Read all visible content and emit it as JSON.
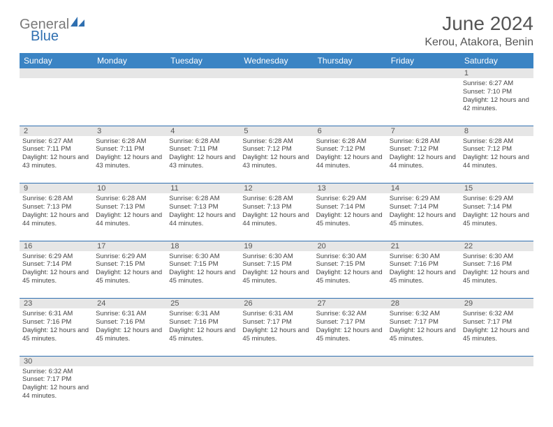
{
  "logo": {
    "text1": "General",
    "text2": "Blue"
  },
  "title": "June 2024",
  "location": "Kerou, Atakora, Benin",
  "colors": {
    "header_bg": "#3b84c4",
    "header_text": "#ffffff",
    "daynum_bg": "#e6e6e6",
    "border": "#2f6fb0",
    "logo_gray": "#7a7a7a",
    "logo_blue": "#2f6fb0"
  },
  "weekdays": [
    "Sunday",
    "Monday",
    "Tuesday",
    "Wednesday",
    "Thursday",
    "Friday",
    "Saturday"
  ],
  "weeks": [
    {
      "nums": [
        "",
        "",
        "",
        "",
        "",
        "",
        "1"
      ],
      "cells": [
        "",
        "",
        "",
        "",
        "",
        "",
        "Sunrise: 6:27 AM\nSunset: 7:10 PM\nDaylight: 12 hours and 42 minutes."
      ]
    },
    {
      "nums": [
        "2",
        "3",
        "4",
        "5",
        "6",
        "7",
        "8"
      ],
      "cells": [
        "Sunrise: 6:27 AM\nSunset: 7:11 PM\nDaylight: 12 hours and 43 minutes.",
        "Sunrise: 6:28 AM\nSunset: 7:11 PM\nDaylight: 12 hours and 43 minutes.",
        "Sunrise: 6:28 AM\nSunset: 7:11 PM\nDaylight: 12 hours and 43 minutes.",
        "Sunrise: 6:28 AM\nSunset: 7:12 PM\nDaylight: 12 hours and 43 minutes.",
        "Sunrise: 6:28 AM\nSunset: 7:12 PM\nDaylight: 12 hours and 44 minutes.",
        "Sunrise: 6:28 AM\nSunset: 7:12 PM\nDaylight: 12 hours and 44 minutes.",
        "Sunrise: 6:28 AM\nSunset: 7:12 PM\nDaylight: 12 hours and 44 minutes."
      ]
    },
    {
      "nums": [
        "9",
        "10",
        "11",
        "12",
        "13",
        "14",
        "15"
      ],
      "cells": [
        "Sunrise: 6:28 AM\nSunset: 7:13 PM\nDaylight: 12 hours and 44 minutes.",
        "Sunrise: 6:28 AM\nSunset: 7:13 PM\nDaylight: 12 hours and 44 minutes.",
        "Sunrise: 6:28 AM\nSunset: 7:13 PM\nDaylight: 12 hours and 44 minutes.",
        "Sunrise: 6:28 AM\nSunset: 7:13 PM\nDaylight: 12 hours and 44 minutes.",
        "Sunrise: 6:29 AM\nSunset: 7:14 PM\nDaylight: 12 hours and 45 minutes.",
        "Sunrise: 6:29 AM\nSunset: 7:14 PM\nDaylight: 12 hours and 45 minutes.",
        "Sunrise: 6:29 AM\nSunset: 7:14 PM\nDaylight: 12 hours and 45 minutes."
      ]
    },
    {
      "nums": [
        "16",
        "17",
        "18",
        "19",
        "20",
        "21",
        "22"
      ],
      "cells": [
        "Sunrise: 6:29 AM\nSunset: 7:14 PM\nDaylight: 12 hours and 45 minutes.",
        "Sunrise: 6:29 AM\nSunset: 7:15 PM\nDaylight: 12 hours and 45 minutes.",
        "Sunrise: 6:30 AM\nSunset: 7:15 PM\nDaylight: 12 hours and 45 minutes.",
        "Sunrise: 6:30 AM\nSunset: 7:15 PM\nDaylight: 12 hours and 45 minutes.",
        "Sunrise: 6:30 AM\nSunset: 7:15 PM\nDaylight: 12 hours and 45 minutes.",
        "Sunrise: 6:30 AM\nSunset: 7:16 PM\nDaylight: 12 hours and 45 minutes.",
        "Sunrise: 6:30 AM\nSunset: 7:16 PM\nDaylight: 12 hours and 45 minutes."
      ]
    },
    {
      "nums": [
        "23",
        "24",
        "25",
        "26",
        "27",
        "28",
        "29"
      ],
      "cells": [
        "Sunrise: 6:31 AM\nSunset: 7:16 PM\nDaylight: 12 hours and 45 minutes.",
        "Sunrise: 6:31 AM\nSunset: 7:16 PM\nDaylight: 12 hours and 45 minutes.",
        "Sunrise: 6:31 AM\nSunset: 7:16 PM\nDaylight: 12 hours and 45 minutes.",
        "Sunrise: 6:31 AM\nSunset: 7:17 PM\nDaylight: 12 hours and 45 minutes.",
        "Sunrise: 6:32 AM\nSunset: 7:17 PM\nDaylight: 12 hours and 45 minutes.",
        "Sunrise: 6:32 AM\nSunset: 7:17 PM\nDaylight: 12 hours and 45 minutes.",
        "Sunrise: 6:32 AM\nSunset: 7:17 PM\nDaylight: 12 hours and 45 minutes."
      ]
    },
    {
      "nums": [
        "30",
        "",
        "",
        "",
        "",
        "",
        ""
      ],
      "cells": [
        "Sunrise: 6:32 AM\nSunset: 7:17 PM\nDaylight: 12 hours and 44 minutes.",
        "",
        "",
        "",
        "",
        "",
        ""
      ]
    }
  ]
}
